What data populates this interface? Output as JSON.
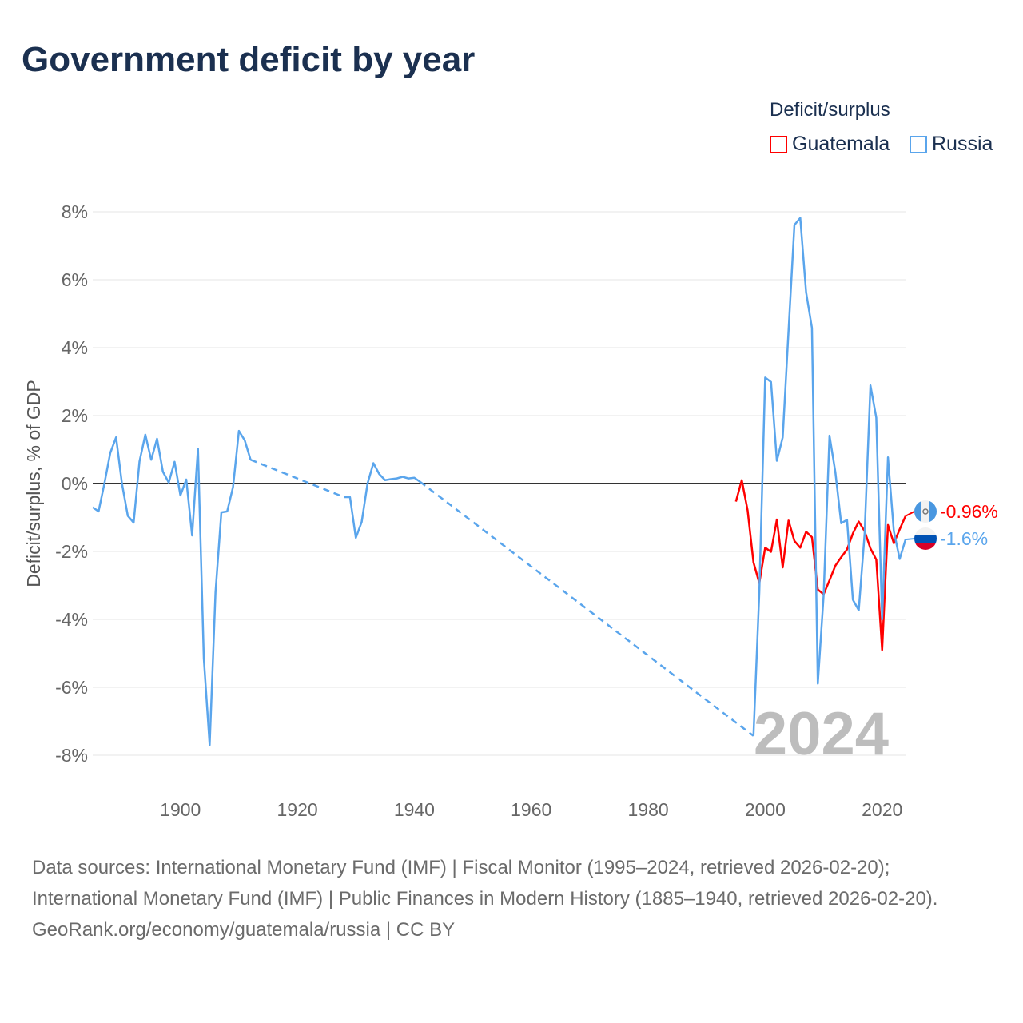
{
  "title": "Government deficit by year",
  "legend": {
    "title": "Deficit/surplus",
    "items": [
      {
        "name": "Guatemala",
        "color": "#ff0000"
      },
      {
        "name": "Russia",
        "color": "#5aa5ec"
      }
    ]
  },
  "footer": {
    "sources": "Data sources: International Monetary Fund (IMF) | Fiscal Monitor (1995–2024, retrieved 2026-02-20); International Monetary Fund (IMF) | Public Finances in Modern History (1885–1940, retrieved 2026-02-20).",
    "credit": "GeoRank.org/economy/guatemala/russia | CC BY"
  },
  "chart_data": {
    "type": "line",
    "title": "Government deficit by year",
    "ylabel": "Deficit/surplus, % of GDP",
    "xlabel": "",
    "xlim": [
      1885,
      2024
    ],
    "ylim": [
      -8,
      8
    ],
    "xticks": [
      1900,
      1920,
      1940,
      1960,
      1980,
      2000,
      2020
    ],
    "yticks": [
      -8,
      -6,
      -4,
      -2,
      0,
      2,
      4,
      6,
      8
    ],
    "ytick_labels": [
      "-8%",
      "-6%",
      "-4%",
      "-2%",
      "0%",
      "2%",
      "4%",
      "6%",
      "8%"
    ],
    "year_watermark": "2024",
    "series": [
      {
        "name": "Guatemala",
        "color": "#ff0000",
        "end_label": "-0.96%",
        "flag": "guatemala-flag",
        "points": [
          [
            1995,
            -0.53
          ],
          [
            1996,
            0.1
          ],
          [
            1997,
            -0.79
          ],
          [
            1998,
            -2.32
          ],
          [
            1999,
            -2.93
          ],
          [
            2000,
            -1.89
          ],
          [
            2001,
            -2.01
          ],
          [
            2002,
            -1.06
          ],
          [
            2003,
            -2.47
          ],
          [
            2004,
            -1.09
          ],
          [
            2005,
            -1.69
          ],
          [
            2006,
            -1.89
          ],
          [
            2007,
            -1.42
          ],
          [
            2008,
            -1.58
          ],
          [
            2009,
            -3.12
          ],
          [
            2010,
            -3.26
          ],
          [
            2011,
            -2.85
          ],
          [
            2012,
            -2.42
          ],
          [
            2013,
            -2.17
          ],
          [
            2014,
            -1.94
          ],
          [
            2015,
            -1.47
          ],
          [
            2016,
            -1.12
          ],
          [
            2017,
            -1.4
          ],
          [
            2018,
            -1.91
          ],
          [
            2019,
            -2.24
          ],
          [
            2020,
            -4.9
          ],
          [
            2021,
            -1.22
          ],
          [
            2022,
            -1.76
          ],
          [
            2023,
            -1.35
          ],
          [
            2024,
            -0.96
          ]
        ]
      },
      {
        "name": "Russia",
        "color": "#5aa5ec",
        "end_label": "-1.6%",
        "flag": "russia-flag",
        "points": [
          [
            1885,
            -0.7
          ],
          [
            1886,
            -0.82
          ],
          [
            1887,
            0
          ],
          [
            1888,
            0.9
          ],
          [
            1889,
            1.36
          ],
          [
            1890,
            0
          ],
          [
            1891,
            -0.95
          ],
          [
            1892,
            -1.15
          ],
          [
            1893,
            0.65
          ],
          [
            1894,
            1.44
          ],
          [
            1895,
            0.7
          ],
          [
            1896,
            1.32
          ],
          [
            1897,
            0.35
          ],
          [
            1898,
            0.03
          ],
          [
            1899,
            0.64
          ],
          [
            1900,
            -0.35
          ],
          [
            1901,
            0.12
          ],
          [
            1902,
            -1.53
          ],
          [
            1903,
            1.03
          ],
          [
            1904,
            -5.15
          ],
          [
            1905,
            -7.7
          ],
          [
            1906,
            -3.2
          ],
          [
            1907,
            -0.85
          ],
          [
            1908,
            -0.82
          ],
          [
            1909,
            -0.1
          ],
          [
            1910,
            1.55
          ],
          [
            1911,
            1.27
          ],
          [
            1912,
            0.7
          ],
          null,
          [
            1928,
            -0.4
          ],
          [
            1929,
            -0.4
          ],
          [
            1930,
            -1.6
          ],
          [
            1931,
            -1.13
          ],
          [
            1932,
            0.0
          ],
          [
            1933,
            0.6
          ],
          [
            1934,
            0.28
          ],
          [
            1935,
            0.1
          ],
          [
            1936,
            0.13
          ],
          [
            1937,
            0.15
          ],
          [
            1938,
            0.2
          ],
          [
            1939,
            0.15
          ],
          [
            1940,
            0.17
          ],
          [
            1941,
            0.05
          ],
          null,
          [
            1998,
            -7.43
          ],
          [
            1999,
            -3.2
          ],
          [
            2000,
            3.12
          ],
          [
            2001,
            2.99
          ],
          [
            2002,
            0.67
          ],
          [
            2003,
            1.36
          ],
          [
            2004,
            4.5
          ],
          [
            2005,
            7.61
          ],
          [
            2006,
            7.82
          ],
          [
            2007,
            5.63
          ],
          [
            2008,
            4.58
          ],
          [
            2009,
            -5.89
          ],
          [
            2010,
            -3.29
          ],
          [
            2011,
            1.41
          ],
          [
            2012,
            0.34
          ],
          [
            2013,
            -1.17
          ],
          [
            2014,
            -1.07
          ],
          [
            2015,
            -3.42
          ],
          [
            2016,
            -3.73
          ],
          [
            2017,
            -1.5
          ],
          [
            2018,
            2.89
          ],
          [
            2019,
            1.94
          ],
          [
            2020,
            -4.0
          ],
          [
            2021,
            0.77
          ],
          [
            2022,
            -1.4
          ],
          [
            2023,
            -2.22
          ],
          [
            2024,
            -1.65
          ]
        ]
      }
    ]
  }
}
